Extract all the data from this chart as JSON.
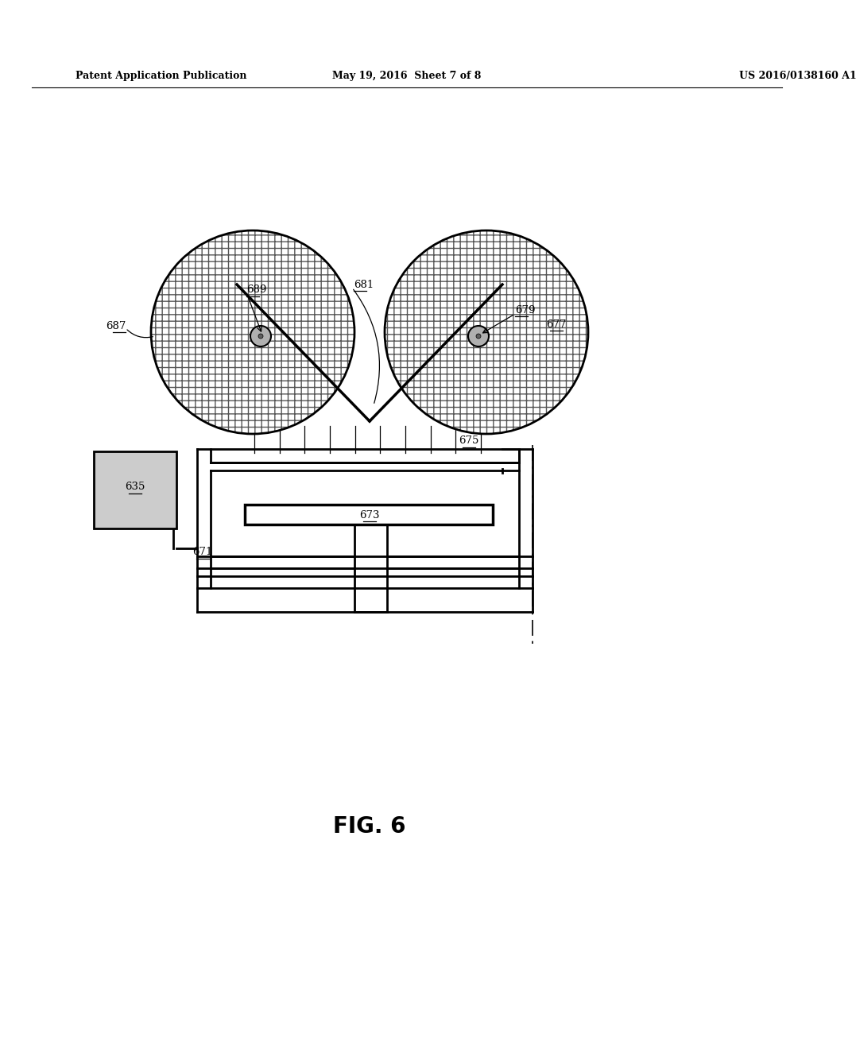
{
  "header_left": "Patent Application Publication",
  "header_mid": "May 19, 2016  Sheet 7 of 8",
  "header_right": "US 2016/0138160 A1",
  "fig_label": "FIG. 6",
  "background": "#ffffff"
}
